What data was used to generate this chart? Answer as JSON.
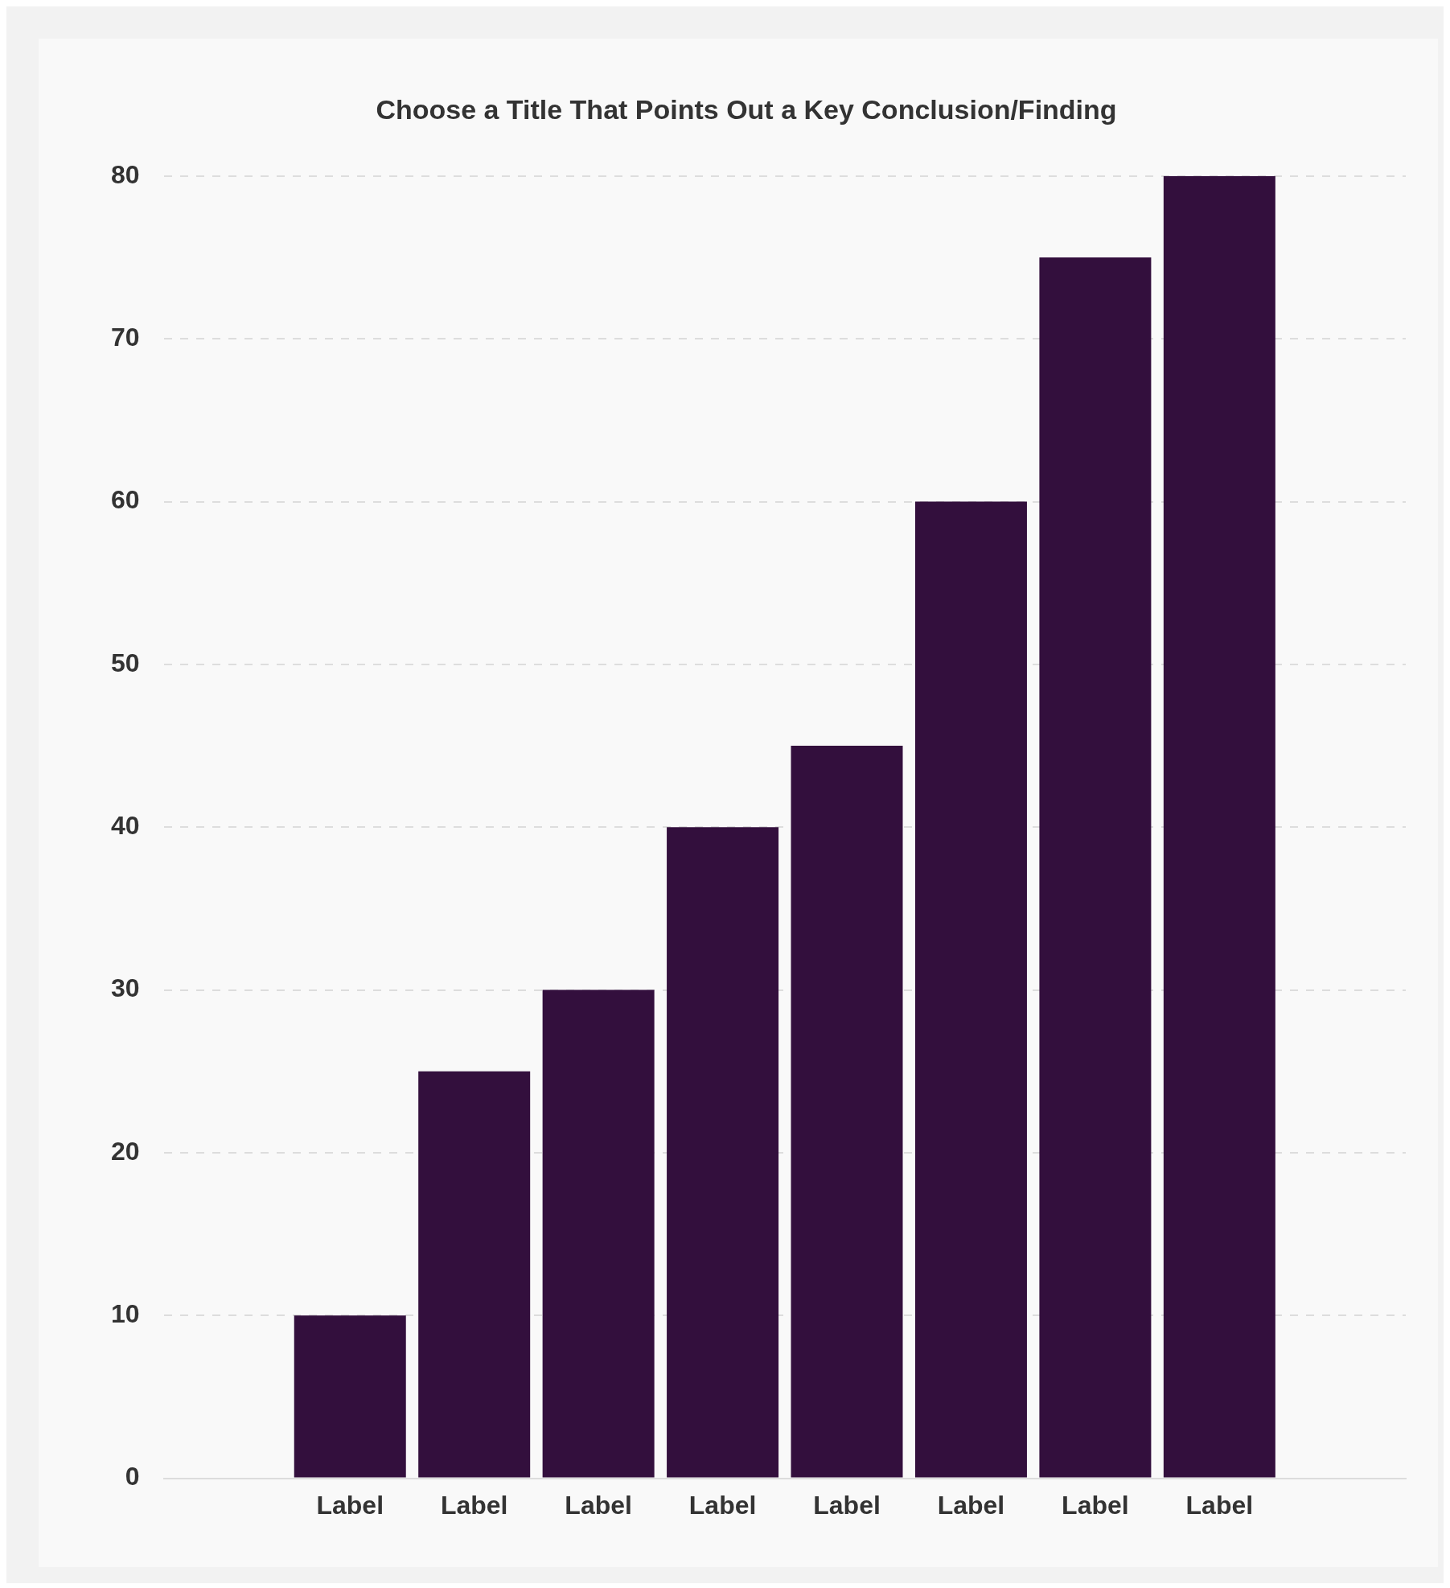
{
  "chart_data": {
    "type": "bar",
    "title": "Choose a Title That Points Out a Key Conclusion/Finding",
    "categories": [
      null,
      "Label",
      "Label",
      "Label",
      "Label",
      "Label",
      "Label",
      "Label",
      "Label",
      null
    ],
    "values": [
      null,
      10,
      25,
      30,
      40,
      45,
      60,
      75,
      80,
      null
    ],
    "color": "#330f3d",
    "ylim": [
      0,
      80
    ],
    "yticks": [
      0,
      10,
      20,
      30,
      40,
      50,
      60,
      70,
      80
    ],
    "grid": "y"
  }
}
